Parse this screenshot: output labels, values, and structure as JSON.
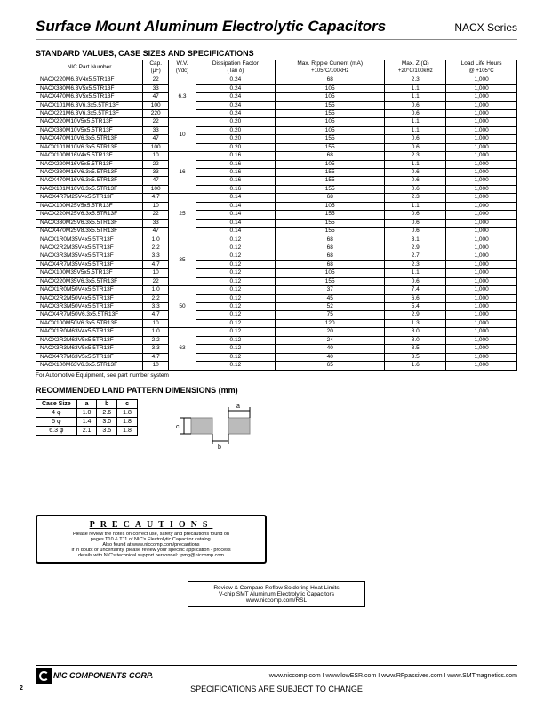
{
  "header": {
    "title": "Surface Mount Aluminum Electrolytic Capacitors",
    "series": "NACX Series"
  },
  "section1_title": "STANDARD VALUES, CASE SIZES AND SPECIFICATIONS",
  "table_heads": {
    "pn": "NIC Part Number",
    "cap": "Cap.",
    "cap2": "(µF)",
    "wv": "W.V.",
    "wv2": "(Vdc)",
    "df": "Dissipation Factor",
    "df2": "(Tan δ)",
    "ripple": "Max. Ripple Current (mA)",
    "ripple2": "+105°C/100kHz",
    "z": "Max. Z (Ω)",
    "z2": "+20°C/100kHz",
    "life": "Load Life Hours",
    "life2": "@ +105°C"
  },
  "wv_groups": [
    {
      "wv": "6.3",
      "rows": [
        {
          "pn": "NACX220M6.3V4x5.5TR13F",
          "cap": "22",
          "df": "0.24",
          "ri": "68",
          "z": "2.3",
          "l": "1,000"
        },
        {
          "pn": "NACX330M6.3V5x5.5TR13F",
          "cap": "33",
          "df": "0.24",
          "ri": "105",
          "z": "1.1",
          "l": "1,000"
        },
        {
          "pn": "NACX470M6.3V5x5.5TR13F",
          "cap": "47",
          "df": "0.24",
          "ri": "105",
          "z": "1.1",
          "l": "1,000"
        },
        {
          "pn": "NACX101M6.3V6.3x5.5TR13F",
          "cap": "100",
          "df": "0.24",
          "ri": "155",
          "z": "0.6",
          "l": "1,000"
        },
        {
          "pn": "NACX221M6.3V6.3x5.5TR13F",
          "cap": "220",
          "df": "0.24",
          "ri": "155",
          "z": "0.6",
          "l": "1,000"
        }
      ]
    },
    {
      "wv": "10",
      "rows": [
        {
          "pn": "NACX220M10V5x5.5TR13F",
          "cap": "22",
          "df": "0.20",
          "ri": "105",
          "z": "1.1",
          "l": "1,000"
        },
        {
          "pn": "NACX330M10V5x5.5TR13F",
          "cap": "33",
          "df": "0.20",
          "ri": "105",
          "z": "1.1",
          "l": "1,000"
        },
        {
          "pn": "NACX470M10V6.3x5.5TR13F",
          "cap": "47",
          "df": "0.20",
          "ri": "155",
          "z": "0.6",
          "l": "1,000"
        },
        {
          "pn": "NACX101M10V6.3x5.5TR13F",
          "cap": "100",
          "df": "0.20",
          "ri": "155",
          "z": "0.6",
          "l": "1,000"
        }
      ]
    },
    {
      "wv": "16",
      "rows": [
        {
          "pn": "NACX100M16V4x5.5TR13F",
          "cap": "10",
          "df": "0.16",
          "ri": "68",
          "z": "2.3",
          "l": "1,000"
        },
        {
          "pn": "NACX220M16V5x5.5TR13F",
          "cap": "22",
          "df": "0.16",
          "ri": "105",
          "z": "1.1",
          "l": "1,000"
        },
        {
          "pn": "NACX330M16V6.3x5.5TR13F",
          "cap": "33",
          "df": "0.16",
          "ri": "155",
          "z": "0.6",
          "l": "1,000"
        },
        {
          "pn": "NACX470M16V6.3x5.5TR13F",
          "cap": "47",
          "df": "0.16",
          "ri": "155",
          "z": "0.6",
          "l": "1,000"
        },
        {
          "pn": "NACX101M16V6.3x5.5TR13F",
          "cap": "100",
          "df": "0.16",
          "ri": "155",
          "z": "0.6",
          "l": "1,000"
        }
      ]
    },
    {
      "wv": "25",
      "rows": [
        {
          "pn": "NACX4R7M25V4x5.5TR13F",
          "cap": "4.7",
          "df": "0.14",
          "ri": "68",
          "z": "2.3",
          "l": "1,000"
        },
        {
          "pn": "NACX100M25V5x5.5TR13F",
          "cap": "10",
          "df": "0.14",
          "ri": "105",
          "z": "1.1",
          "l": "1,000"
        },
        {
          "pn": "NACX220M25V6.3x5.5TR13F",
          "cap": "22",
          "df": "0.14",
          "ri": "155",
          "z": "0.6",
          "l": "1,000"
        },
        {
          "pn": "NACX330M25V6.3x5.5TR13F",
          "cap": "33",
          "df": "0.14",
          "ri": "155",
          "z": "0.6",
          "l": "1,000"
        },
        {
          "pn": "NACX470M25V8.3x5.5TR13F",
          "cap": "47",
          "df": "0.14",
          "ri": "155",
          "z": "0.6",
          "l": "1,000"
        }
      ]
    },
    {
      "wv": "35",
      "rows": [
        {
          "pn": "NACX1R0M35V4x5.5TR13F",
          "cap": "1.0",
          "df": "0.12",
          "ri": "68",
          "z": "3.1",
          "l": "1,000"
        },
        {
          "pn": "NACX2R2M35V4x5.5TR13F",
          "cap": "2.2",
          "df": "0.12",
          "ri": "68",
          "z": "2.9",
          "l": "1,000"
        },
        {
          "pn": "NACX3R3M35V4x5.5TR13F",
          "cap": "3.3",
          "df": "0.12",
          "ri": "68",
          "z": "2.7",
          "l": "1,000"
        },
        {
          "pn": "NACX4R7M35V4x5.5TR13F",
          "cap": "4.7",
          "df": "0.12",
          "ri": "68",
          "z": "2.3",
          "l": "1,000"
        },
        {
          "pn": "NACX100M35V5x5.5TR13F",
          "cap": "10",
          "df": "0.12",
          "ri": "105",
          "z": "1.1",
          "l": "1,000"
        },
        {
          "pn": "NACX220M35V6.3x5.5TR13F",
          "cap": "22",
          "df": "0.12",
          "ri": "155",
          "z": "0.6",
          "l": "1,000"
        }
      ]
    },
    {
      "wv": "50",
      "rows": [
        {
          "pn": "NACX1R0M50V4x5.5TR13F",
          "cap": "1.0",
          "df": "0.12",
          "ri": "37",
          "z": "7.4",
          "l": "1,000"
        },
        {
          "pn": "NACX2R2M50V4x5.5TR13F",
          "cap": "2.2",
          "df": "0.12",
          "ri": "45",
          "z": "6.6",
          "l": "1,000"
        },
        {
          "pn": "NACX3R3M50V4x5.5TR13F",
          "cap": "3.3",
          "df": "0.12",
          "ri": "52",
          "z": "5.4",
          "l": "1,000"
        },
        {
          "pn": "NACX4R7M50V6.3x5.5TR13F",
          "cap": "4.7",
          "df": "0.12",
          "ri": "75",
          "z": "2.9",
          "l": "1,000"
        },
        {
          "pn": "NACX100M50V6.3x5.5TR13F",
          "cap": "10",
          "df": "0.12",
          "ri": "120",
          "z": "1.3",
          "l": "1,000"
        }
      ]
    },
    {
      "wv": "63",
      "rows": [
        {
          "pn": "NACX1R0M63V4x5.5TR13F",
          "cap": "1.0",
          "df": "0.12",
          "ri": "20",
          "z": "8.0",
          "l": "1,000"
        },
        {
          "pn": "NACX2R2M63V5x5.5TR13F",
          "cap": "2.2",
          "df": "0.12",
          "ri": "24",
          "z": "8.0",
          "l": "1,000"
        },
        {
          "pn": "NACX3R3M63V5x5.5TR13F",
          "cap": "3.3",
          "df": "0.12",
          "ri": "40",
          "z": "3.5",
          "l": "1,000"
        },
        {
          "pn": "NACX4R7M63V5x5.5TR13F",
          "cap": "4.7",
          "df": "0.12",
          "ri": "40",
          "z": "3.5",
          "l": "1,000"
        },
        {
          "pn": "NACX100M63V6.3x5.5TR13F",
          "cap": "10",
          "df": "0.12",
          "ri": "65",
          "z": "1.6",
          "l": "1,000"
        }
      ]
    }
  ],
  "auto_note": "For Automotive Equipment, see part number system",
  "section2_title": "RECOMMENDED LAND PATTERN DIMENSIONS (mm)",
  "land_heads": [
    "Case Size",
    "a",
    "b",
    "c"
  ],
  "land_rows": [
    [
      "4 φ",
      "1.0",
      "2.6",
      "1.8"
    ],
    [
      "5 φ",
      "1.4",
      "3.0",
      "1.8"
    ],
    [
      "6.3 φ",
      "2.1",
      "3.5",
      "1.8"
    ]
  ],
  "diagram_labels": {
    "a": "a",
    "b": "b",
    "c": "c"
  },
  "precautions": {
    "title": "PRECAUTIONS",
    "l1": "Please review the notes on correct use, safety and precautions found on",
    "l2": "pages T10 & T11 of NIC's Electrolytic Capacitor catalog.",
    "l3": "Also found at www.niccomp.com/precautions",
    "l4": "If in doubt or uncertainty, please review your specific application - process",
    "l5": "details with NIC's technical support personnel: tpmg@niccomp.com"
  },
  "review": {
    "l1": "Review & Compare Reflow Soldering Heat Limits",
    "l2": "V-chip SMT Aluminum Electrolytic Capacitors",
    "l3": "www.niccomp.com/RSL"
  },
  "footer": {
    "corp": "NIC COMPONENTS CORP.",
    "urls": "www.niccomp.com   I   www.lowESR.com   I   www.RFpassives.com   I   www.SMTmagnetics.com",
    "change": "SPECIFICATIONS ARE SUBJECT TO CHANGE",
    "page": "2"
  }
}
